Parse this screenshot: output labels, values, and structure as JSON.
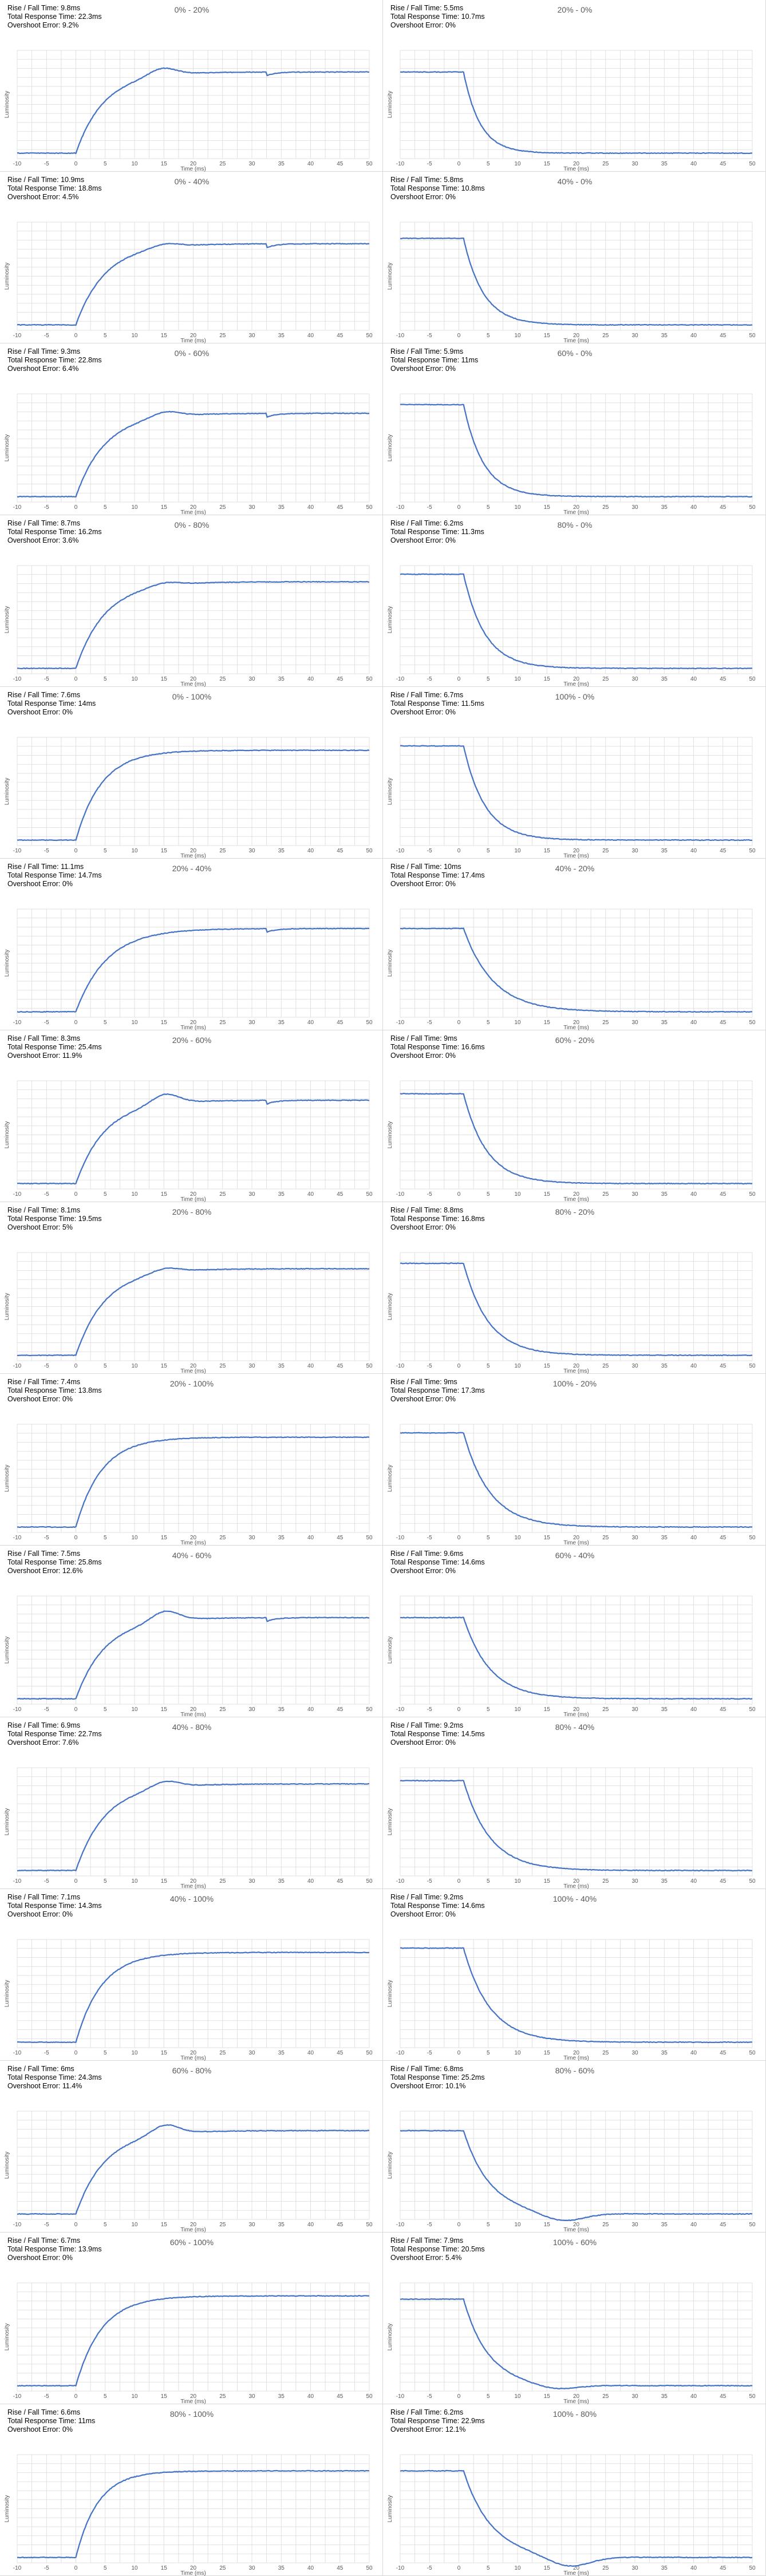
{
  "colors": {
    "line": "#4472c4",
    "grid": "#d9d9d9",
    "text": "#595959",
    "stats": "#000000"
  },
  "axis": {
    "xlabel": "Time (ms)",
    "ylabel": "Luminosity",
    "x_ticks": [
      -10,
      -5,
      0,
      5,
      10,
      15,
      20,
      25,
      30,
      35,
      40,
      45,
      50
    ]
  },
  "chart_data": [
    {
      "type": "line",
      "title": "0% - 20%",
      "direction": "rise",
      "start": 0.05,
      "end": 0.8,
      "overshoot_pct": 9.2,
      "settle_ms": 15.5,
      "bump_ms": 33,
      "stats": [
        "Rise / Fall Time: 9.8ms",
        "Total Response Time: 22.3ms",
        "Overshoot Error: 9.2%"
      ],
      "xlabel": "Time (ms)",
      "ylabel": "Luminosity",
      "xlim": [
        -10,
        50
      ]
    },
    {
      "type": "line",
      "title": "20% - 0%",
      "direction": "fall",
      "start": 0.8,
      "end": 0.05,
      "overshoot_pct": 0,
      "settle_ms": 10,
      "bump_ms": null,
      "stats": [
        "Rise / Fall Time: 5.5ms",
        "Total Response Time: 10.7ms",
        "Overshoot Error: 0%"
      ],
      "xlabel": "Time (ms)",
      "ylabel": "Luminosity",
      "xlim": [
        -10,
        50
      ]
    },
    {
      "type": "line",
      "title": "0% - 40%",
      "direction": "rise",
      "start": 0.05,
      "end": 0.8,
      "overshoot_pct": 4.5,
      "settle_ms": 16,
      "bump_ms": 33,
      "stats": [
        "Rise / Fall Time: 10.9ms",
        "Total Response Time: 18.8ms",
        "Overshoot Error: 4.5%"
      ],
      "xlabel": "Time (ms)",
      "ylabel": "Luminosity",
      "xlim": [
        -10,
        50
      ]
    },
    {
      "type": "line",
      "title": "40% - 0%",
      "direction": "fall",
      "start": 0.85,
      "end": 0.05,
      "overshoot_pct": 0,
      "settle_ms": 12,
      "bump_ms": null,
      "stats": [
        "Rise / Fall Time: 5.8ms",
        "Total Response Time: 10.8ms",
        "Overshoot Error: 0%"
      ],
      "xlabel": "Time (ms)",
      "ylabel": "Luminosity",
      "xlim": [
        -10,
        50
      ]
    },
    {
      "type": "line",
      "title": "0% - 60%",
      "direction": "rise",
      "start": 0.05,
      "end": 0.82,
      "overshoot_pct": 6.4,
      "settle_ms": 16,
      "bump_ms": 33,
      "stats": [
        "Rise / Fall Time: 9.3ms",
        "Total Response Time: 22.8ms",
        "Overshoot Error: 6.4%"
      ],
      "xlabel": "Time (ms)",
      "ylabel": "Luminosity",
      "xlim": [
        -10,
        50
      ]
    },
    {
      "type": "line",
      "title": "60% - 0%",
      "direction": "fall",
      "start": 0.9,
      "end": 0.05,
      "overshoot_pct": 0,
      "settle_ms": 12,
      "bump_ms": null,
      "stats": [
        "Rise / Fall Time: 5.9ms",
        "Total Response Time: 11ms",
        "Overshoot Error: 0%"
      ],
      "xlabel": "Time (ms)",
      "ylabel": "Luminosity",
      "xlim": [
        -10,
        50
      ]
    },
    {
      "type": "line",
      "title": "0% - 80%",
      "direction": "rise",
      "start": 0.05,
      "end": 0.85,
      "overshoot_pct": 3.6,
      "settle_ms": 16,
      "bump_ms": null,
      "stats": [
        "Rise / Fall Time: 8.7ms",
        "Total Response Time: 16.2ms",
        "Overshoot Error: 3.6%"
      ],
      "xlabel": "Time (ms)",
      "ylabel": "Luminosity",
      "xlim": [
        -10,
        50
      ]
    },
    {
      "type": "line",
      "title": "80% - 0%",
      "direction": "fall",
      "start": 0.92,
      "end": 0.05,
      "overshoot_pct": 0,
      "settle_ms": 13,
      "bump_ms": null,
      "stats": [
        "Rise / Fall Time: 6.2ms",
        "Total Response Time: 11.3ms",
        "Overshoot Error: 0%"
      ],
      "xlabel": "Time (ms)",
      "ylabel": "Luminosity",
      "xlim": [
        -10,
        50
      ]
    },
    {
      "type": "line",
      "title": "0% - 100%",
      "direction": "rise",
      "start": 0.05,
      "end": 0.88,
      "overshoot_pct": 0,
      "settle_ms": 14,
      "bump_ms": null,
      "stats": [
        "Rise / Fall Time: 7.6ms",
        "Total Response Time: 14ms",
        "Overshoot Error: 0%"
      ],
      "xlabel": "Time (ms)",
      "ylabel": "Luminosity",
      "xlim": [
        -10,
        50
      ]
    },
    {
      "type": "line",
      "title": "100% - 0%",
      "direction": "fall",
      "start": 0.92,
      "end": 0.05,
      "overshoot_pct": 0,
      "settle_ms": 13,
      "bump_ms": null,
      "stats": [
        "Rise / Fall Time: 6.7ms",
        "Total Response Time: 11.5ms",
        "Overshoot Error: 0%"
      ],
      "xlabel": "Time (ms)",
      "ylabel": "Luminosity",
      "xlim": [
        -10,
        50
      ]
    },
    {
      "type": "line",
      "title": "20% - 40%",
      "direction": "rise",
      "start": 0.05,
      "end": 0.82,
      "overshoot_pct": 0,
      "settle_ms": 17,
      "bump_ms": 33,
      "stats": [
        "Rise / Fall Time: 11.1ms",
        "Total Response Time: 14.7ms",
        "Overshoot Error: 0%"
      ],
      "xlabel": "Time (ms)",
      "ylabel": "Luminosity",
      "xlim": [
        -10,
        50
      ]
    },
    {
      "type": "line",
      "title": "40% - 20%",
      "direction": "fall",
      "start": 0.82,
      "end": 0.05,
      "overshoot_pct": 0,
      "settle_ms": 18,
      "bump_ms": null,
      "stats": [
        "Rise / Fall Time: 10ms",
        "Total Response Time: 17.4ms",
        "Overshoot Error: 0%"
      ],
      "xlabel": "Time (ms)",
      "ylabel": "Luminosity",
      "xlim": [
        -10,
        50
      ]
    },
    {
      "type": "line",
      "title": "20% - 60%",
      "direction": "rise",
      "start": 0.05,
      "end": 0.82,
      "overshoot_pct": 11.9,
      "settle_ms": 16,
      "bump_ms": 33,
      "stats": [
        "Rise / Fall Time: 8.3ms",
        "Total Response Time: 25.4ms",
        "Overshoot Error: 11.9%"
      ],
      "xlabel": "Time (ms)",
      "ylabel": "Luminosity",
      "xlim": [
        -10,
        50
      ]
    },
    {
      "type": "line",
      "title": "60% - 20%",
      "direction": "fall",
      "start": 0.88,
      "end": 0.05,
      "overshoot_pct": 0,
      "settle_ms": 14,
      "bump_ms": null,
      "stats": [
        "Rise / Fall Time: 9ms",
        "Total Response Time: 16.6ms",
        "Overshoot Error: 0%"
      ],
      "xlabel": "Time (ms)",
      "ylabel": "Luminosity",
      "xlim": [
        -10,
        50
      ]
    },
    {
      "type": "line",
      "title": "20% - 80%",
      "direction": "rise",
      "start": 0.05,
      "end": 0.85,
      "overshoot_pct": 5,
      "settle_ms": 16,
      "bump_ms": null,
      "stats": [
        "Rise / Fall Time: 8.1ms",
        "Total Response Time: 19.5ms",
        "Overshoot Error: 5%"
      ],
      "xlabel": "Time (ms)",
      "ylabel": "Luminosity",
      "xlim": [
        -10,
        50
      ]
    },
    {
      "type": "line",
      "title": "80% - 20%",
      "direction": "fall",
      "start": 0.9,
      "end": 0.05,
      "overshoot_pct": 0,
      "settle_ms": 15,
      "bump_ms": null,
      "stats": [
        "Rise / Fall Time: 8.8ms",
        "Total Response Time: 16.8ms",
        "Overshoot Error: 0%"
      ],
      "xlabel": "Time (ms)",
      "ylabel": "Luminosity",
      "xlim": [
        -10,
        50
      ]
    },
    {
      "type": "line",
      "title": "20% - 100%",
      "direction": "rise",
      "start": 0.05,
      "end": 0.88,
      "overshoot_pct": 0,
      "settle_ms": 14,
      "bump_ms": null,
      "stats": [
        "Rise / Fall Time: 7.4ms",
        "Total Response Time: 13.8ms",
        "Overshoot Error: 0%"
      ],
      "xlabel": "Time (ms)",
      "ylabel": "Luminosity",
      "xlim": [
        -10,
        50
      ]
    },
    {
      "type": "line",
      "title": "100% - 20%",
      "direction": "fall",
      "start": 0.92,
      "end": 0.05,
      "overshoot_pct": 0,
      "settle_ms": 16,
      "bump_ms": null,
      "stats": [
        "Rise / Fall Time: 9ms",
        "Total Response Time: 17.3ms",
        "Overshoot Error: 0%"
      ],
      "xlabel": "Time (ms)",
      "ylabel": "Luminosity",
      "xlim": [
        -10,
        50
      ]
    },
    {
      "type": "line",
      "title": "40% - 60%",
      "direction": "rise",
      "start": 0.05,
      "end": 0.8,
      "overshoot_pct": 12.6,
      "settle_ms": 16,
      "bump_ms": 33,
      "stats": [
        "Rise / Fall Time: 7.5ms",
        "Total Response Time: 25.8ms",
        "Overshoot Error: 12.6%"
      ],
      "xlabel": "Time (ms)",
      "ylabel": "Luminosity",
      "xlim": [
        -10,
        50
      ]
    },
    {
      "type": "line",
      "title": "60% - 40%",
      "direction": "fall",
      "start": 0.8,
      "end": 0.05,
      "overshoot_pct": 0,
      "settle_ms": 16,
      "bump_ms": null,
      "stats": [
        "Rise / Fall Time: 9.6ms",
        "Total Response Time: 14.6ms",
        "Overshoot Error: 0%"
      ],
      "xlabel": "Time (ms)",
      "ylabel": "Luminosity",
      "xlim": [
        -10,
        50
      ]
    },
    {
      "type": "line",
      "title": "40% - 80%",
      "direction": "rise",
      "start": 0.05,
      "end": 0.85,
      "overshoot_pct": 7.6,
      "settle_ms": 16,
      "bump_ms": null,
      "stats": [
        "Rise / Fall Time: 6.9ms",
        "Total Response Time: 22.7ms",
        "Overshoot Error: 7.6%"
      ],
      "xlabel": "Time (ms)",
      "ylabel": "Luminosity",
      "xlim": [
        -10,
        50
      ]
    },
    {
      "type": "line",
      "title": "80% - 40%",
      "direction": "fall",
      "start": 0.88,
      "end": 0.05,
      "overshoot_pct": 0,
      "settle_ms": 16,
      "bump_ms": null,
      "stats": [
        "Rise / Fall Time: 9.2ms",
        "Total Response Time: 14.5ms",
        "Overshoot Error: 0%"
      ],
      "xlabel": "Time (ms)",
      "ylabel": "Luminosity",
      "xlim": [
        -10,
        50
      ]
    },
    {
      "type": "line",
      "title": "40% - 100%",
      "direction": "rise",
      "start": 0.05,
      "end": 0.88,
      "overshoot_pct": 0,
      "settle_ms": 14,
      "bump_ms": null,
      "stats": [
        "Rise / Fall Time: 7.1ms",
        "Total Response Time: 14.3ms",
        "Overshoot Error: 0%"
      ],
      "xlabel": "Time (ms)",
      "ylabel": "Luminosity",
      "xlim": [
        -10,
        50
      ]
    },
    {
      "type": "line",
      "title": "100% - 40%",
      "direction": "fall",
      "start": 0.92,
      "end": 0.05,
      "overshoot_pct": 0,
      "settle_ms": 16,
      "bump_ms": null,
      "stats": [
        "Rise / Fall Time: 9.2ms",
        "Total Response Time: 14.6ms",
        "Overshoot Error: 0%"
      ],
      "xlabel": "Time (ms)",
      "ylabel": "Luminosity",
      "xlim": [
        -10,
        50
      ]
    },
    {
      "type": "line",
      "title": "60% - 80%",
      "direction": "rise",
      "start": 0.05,
      "end": 0.82,
      "overshoot_pct": 11.4,
      "settle_ms": 16,
      "bump_ms": null,
      "stats": [
        "Rise / Fall Time: 6ms",
        "Total Response Time: 24.3ms",
        "Overshoot Error: 11.4%"
      ],
      "xlabel": "Time (ms)",
      "ylabel": "Luminosity",
      "xlim": [
        -10,
        50
      ]
    },
    {
      "type": "line",
      "title": "80% - 60%",
      "direction": "fall",
      "start": 0.82,
      "end": 0.05,
      "overshoot_pct": 10.1,
      "settle_ms": 16,
      "bump_ms": null,
      "stats": [
        "Rise / Fall Time: 6.8ms",
        "Total Response Time: 25.2ms",
        "Overshoot Error: 10.1%"
      ],
      "xlabel": "Time (ms)",
      "ylabel": "Luminosity",
      "xlim": [
        -10,
        50
      ]
    },
    {
      "type": "line",
      "title": "60% - 100%",
      "direction": "rise",
      "start": 0.05,
      "end": 0.88,
      "overshoot_pct": 0,
      "settle_ms": 14,
      "bump_ms": null,
      "stats": [
        "Rise / Fall Time: 6.7ms",
        "Total Response Time: 13.9ms",
        "Overshoot Error: 0%"
      ],
      "xlabel": "Time (ms)",
      "ylabel": "Luminosity",
      "xlim": [
        -10,
        50
      ]
    },
    {
      "type": "line",
      "title": "100% - 60%",
      "direction": "fall",
      "start": 0.85,
      "end": 0.05,
      "overshoot_pct": 5.4,
      "settle_ms": 15,
      "bump_ms": null,
      "stats": [
        "Rise / Fall Time: 7.9ms",
        "Total Response Time: 20.5ms",
        "Overshoot Error: 5.4%"
      ],
      "xlabel": "Time (ms)",
      "ylabel": "Luminosity",
      "xlim": [
        -10,
        50
      ]
    },
    {
      "type": "line",
      "title": "80% - 100%",
      "direction": "rise",
      "start": 0.05,
      "end": 0.85,
      "overshoot_pct": 0,
      "settle_ms": 12,
      "bump_ms": null,
      "stats": [
        "Rise / Fall Time: 6.6ms",
        "Total Response Time: 11ms",
        "Overshoot Error: 0%"
      ],
      "xlabel": "Time (ms)",
      "ylabel": "Luminosity",
      "xlim": [
        -10,
        50
      ]
    },
    {
      "type": "line",
      "title": "100% - 80%",
      "direction": "fall",
      "start": 0.85,
      "end": 0.05,
      "overshoot_pct": 12.1,
      "settle_ms": 17,
      "bump_ms": null,
      "stats": [
        "Rise / Fall Time: 6.2ms",
        "Total Response Time: 22.9ms",
        "Overshoot Error: 12.1%"
      ],
      "xlabel": "Time (ms)",
      "ylabel": "Luminosity",
      "xlim": [
        -10,
        50
      ]
    }
  ]
}
